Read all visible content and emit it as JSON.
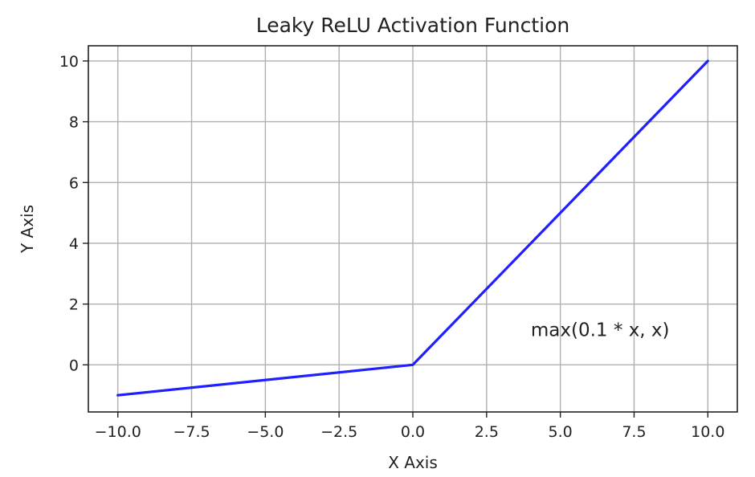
{
  "chart_data": {
    "type": "line",
    "title": "Leaky ReLU Activation Function",
    "xlabel": "X Axis",
    "ylabel": "Y Axis",
    "xlim": [
      -11,
      11
    ],
    "ylim": [
      -1.55,
      10.5
    ],
    "grid": true,
    "xticks": [
      -10.0,
      -7.5,
      -5.0,
      -2.5,
      0.0,
      2.5,
      5.0,
      7.5,
      10.0
    ],
    "xtick_labels": [
      "−10.0",
      "−7.5",
      "−5.0",
      "−2.5",
      "0.0",
      "2.5",
      "5.0",
      "7.5",
      "10.0"
    ],
    "yticks": [
      0,
      2,
      4,
      6,
      8,
      10
    ],
    "ytick_labels": [
      "0",
      "2",
      "4",
      "6",
      "8",
      "10"
    ],
    "series": [
      {
        "color": "#1f1fff",
        "x": [
          -10,
          0,
          10
        ],
        "y": [
          -1,
          0,
          10
        ]
      }
    ],
    "annotations": [
      {
        "text": "max(0.1 * x, x)",
        "x": 4.0,
        "y": 0.95
      }
    ]
  }
}
